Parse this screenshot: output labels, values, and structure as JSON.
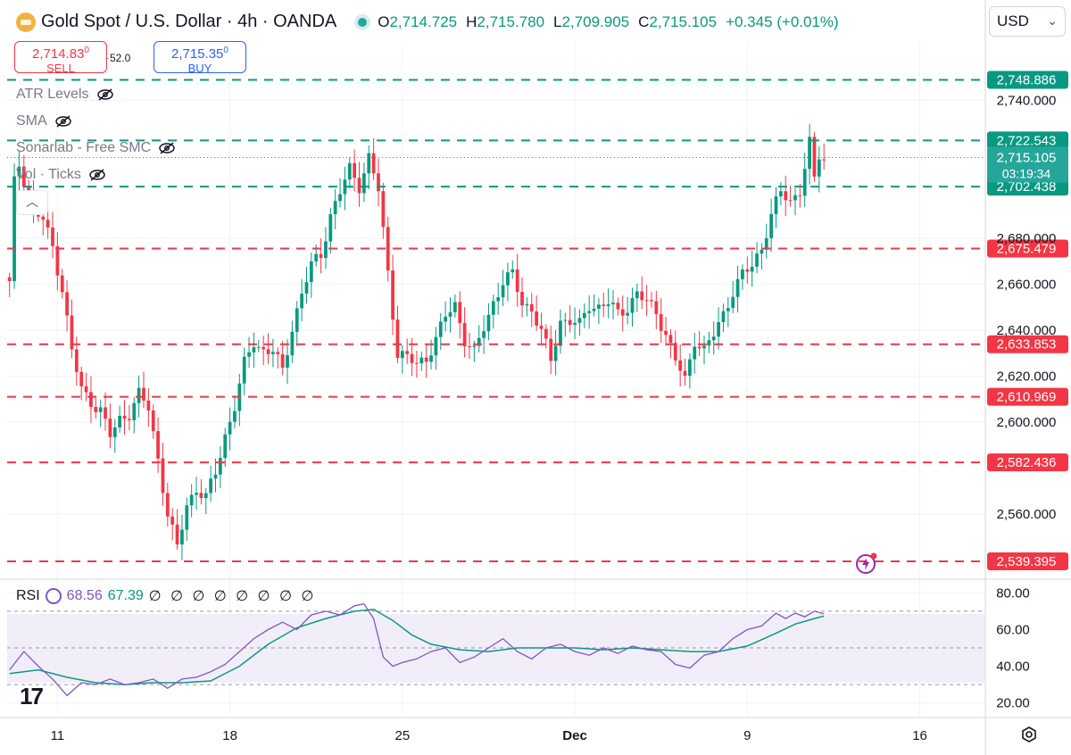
{
  "header": {
    "title": "Gold Spot / U.S. Dollar · 4h · OANDA",
    "ohlc": [
      {
        "key": "O",
        "value": "2,714.725"
      },
      {
        "key": "H",
        "value": "2,715.780"
      },
      {
        "key": "L",
        "value": "2,709.905"
      },
      {
        "key": "C",
        "value": "2,715.105"
      },
      {
        "key": "",
        "value": "+0.345 (+0.01%)"
      }
    ]
  },
  "trade": {
    "sell_price": "2,714.83",
    "sell_sup": "0",
    "sell_label": "SELL",
    "buy_price": "2,715.35",
    "buy_sup": "0",
    "buy_label": "BUY",
    "spread": "52.0"
  },
  "indicators": [
    "ATR Levels",
    "SMA",
    "Sonarlab - Free SMC",
    "Vol · Ticks"
  ],
  "currency": "USD",
  "rsi_legend": {
    "name": "RSI",
    "value1": "68.56",
    "value2": "67.39",
    "extra": "∅ ∅ ∅ ∅ ∅ ∅ ∅ ∅"
  },
  "logo_text": "17",
  "colors": {
    "up": "#089981",
    "down": "#f23645",
    "support": "#f23645",
    "resistance": "#089981",
    "rsi": "#7e57c2",
    "rsi_ma": "#089981"
  },
  "chart_data": {
    "type": "candlestick",
    "symbol": "XAUUSD",
    "timeframe": "4h",
    "ylim": [
      2532,
      2765
    ],
    "yticks": [
      2740,
      2680,
      2660,
      2640,
      2620,
      2600,
      2560
    ],
    "ytick_labels": [
      "2,740.000",
      "2,680.000",
      "2,660.000",
      "2,640.000",
      "2,620.000",
      "2,600.000",
      "2,560.000"
    ],
    "xticks": [
      {
        "bar": 10,
        "label": "11"
      },
      {
        "bar": 46,
        "label": "18"
      },
      {
        "bar": 82,
        "label": "25"
      },
      {
        "bar": 118,
        "label": "Dec"
      },
      {
        "bar": 154,
        "label": "9"
      },
      {
        "bar": 190,
        "label": "16"
      }
    ],
    "bars_total": 204,
    "current_price": 2715.105,
    "countdown": "03:19:34",
    "levels": [
      {
        "value": 2748.886,
        "label": "2,748.886",
        "kind": "resistance"
      },
      {
        "value": 2722.543,
        "label": "2,722.543",
        "kind": "resistance"
      },
      {
        "value": 2702.438,
        "label": "2,702.438",
        "kind": "resistance"
      },
      {
        "value": 2675.479,
        "label": "2,675.479",
        "kind": "support"
      },
      {
        "value": 2633.853,
        "label": "2,633.853",
        "kind": "support"
      },
      {
        "value": 2610.969,
        "label": "2,610.969",
        "kind": "support"
      },
      {
        "value": 2582.436,
        "label": "2,582.436",
        "kind": "support"
      },
      {
        "value": 2539.395,
        "label": "2,539.395",
        "kind": "support"
      }
    ],
    "close_path": [
      [
        0,
        2660
      ],
      [
        1,
        2704
      ],
      [
        2,
        2712
      ],
      [
        4,
        2699
      ],
      [
        5,
        2692
      ],
      [
        7,
        2688
      ],
      [
        9,
        2676
      ],
      [
        11,
        2658
      ],
      [
        13,
        2631
      ],
      [
        15,
        2614
      ],
      [
        17,
        2609
      ],
      [
        19,
        2605
      ],
      [
        21,
        2594
      ],
      [
        23,
        2601
      ],
      [
        25,
        2604
      ],
      [
        27,
        2612
      ],
      [
        29,
        2606
      ],
      [
        31,
        2584
      ],
      [
        33,
        2560
      ],
      [
        35,
        2545
      ],
      [
        37,
        2564
      ],
      [
        39,
        2571
      ],
      [
        41,
        2567
      ],
      [
        43,
        2578
      ],
      [
        45,
        2594
      ],
      [
        47,
        2607
      ],
      [
        49,
        2625
      ],
      [
        51,
        2635
      ],
      [
        53,
        2631
      ],
      [
        55,
        2631
      ],
      [
        57,
        2622
      ],
      [
        59,
        2641
      ],
      [
        61,
        2656
      ],
      [
        63,
        2668
      ],
      [
        65,
        2673
      ],
      [
        67,
        2690
      ],
      [
        69,
        2700
      ],
      [
        71,
        2710
      ],
      [
        73,
        2703
      ],
      [
        75,
        2715
      ],
      [
        77,
        2701
      ],
      [
        79,
        2665
      ],
      [
        81,
        2630
      ],
      [
        83,
        2628
      ],
      [
        85,
        2625
      ],
      [
        87,
        2628
      ],
      [
        89,
        2636
      ],
      [
        91,
        2646
      ],
      [
        93,
        2651
      ],
      [
        95,
        2636
      ],
      [
        97,
        2630
      ],
      [
        99,
        2641
      ],
      [
        101,
        2652
      ],
      [
        103,
        2661
      ],
      [
        105,
        2664
      ],
      [
        107,
        2652
      ],
      [
        109,
        2649
      ],
      [
        111,
        2639
      ],
      [
        113,
        2627
      ],
      [
        115,
        2644
      ],
      [
        117,
        2644
      ],
      [
        119,
        2642
      ],
      [
        121,
        2651
      ],
      [
        123,
        2650
      ],
      [
        125,
        2652
      ],
      [
        127,
        2647
      ],
      [
        129,
        2650
      ],
      [
        131,
        2656
      ],
      [
        133,
        2652
      ],
      [
        135,
        2648
      ],
      [
        137,
        2638
      ],
      [
        139,
        2627
      ],
      [
        141,
        2618
      ],
      [
        143,
        2636
      ],
      [
        145,
        2631
      ],
      [
        147,
        2638
      ],
      [
        149,
        2647
      ],
      [
        151,
        2657
      ],
      [
        153,
        2664
      ],
      [
        155,
        2668
      ],
      [
        157,
        2676
      ],
      [
        159,
        2690
      ],
      [
        161,
        2700
      ],
      [
        163,
        2696
      ],
      [
        165,
        2701
      ],
      [
        167,
        2721
      ],
      [
        168,
        2705
      ],
      [
        169,
        2716
      ],
      [
        170,
        2715
      ]
    ],
    "rsi": {
      "ylim": [
        13,
        87
      ],
      "yticks": [
        80,
        60,
        40,
        20
      ],
      "ytick_labels": [
        "80.00",
        "60.00",
        "40.00",
        "20.00"
      ],
      "bands": [
        70,
        50,
        30
      ],
      "value": 68.56,
      "ma_value": 67.39,
      "rsi_path": [
        [
          0,
          38
        ],
        [
          3,
          48
        ],
        [
          6,
          40
        ],
        [
          9,
          33
        ],
        [
          12,
          24
        ],
        [
          15,
          31
        ],
        [
          18,
          30
        ],
        [
          21,
          33
        ],
        [
          24,
          30
        ],
        [
          27,
          31
        ],
        [
          30,
          33
        ],
        [
          33,
          28
        ],
        [
          36,
          33
        ],
        [
          39,
          34
        ],
        [
          42,
          37
        ],
        [
          45,
          41
        ],
        [
          48,
          48
        ],
        [
          51,
          55
        ],
        [
          54,
          60
        ],
        [
          57,
          64
        ],
        [
          60,
          60
        ],
        [
          63,
          68
        ],
        [
          66,
          70
        ],
        [
          69,
          68
        ],
        [
          72,
          73
        ],
        [
          74,
          74
        ],
        [
          76,
          66
        ],
        [
          78,
          45
        ],
        [
          80,
          40
        ],
        [
          82,
          42
        ],
        [
          85,
          44
        ],
        [
          88,
          48
        ],
        [
          91,
          50
        ],
        [
          94,
          42
        ],
        [
          97,
          45
        ],
        [
          100,
          50
        ],
        [
          103,
          55
        ],
        [
          106,
          48
        ],
        [
          109,
          44
        ],
        [
          112,
          50
        ],
        [
          115,
          52
        ],
        [
          118,
          48
        ],
        [
          121,
          46
        ],
        [
          124,
          50
        ],
        [
          127,
          47
        ],
        [
          130,
          51
        ],
        [
          133,
          49
        ],
        [
          136,
          48
        ],
        [
          139,
          41
        ],
        [
          142,
          39
        ],
        [
          145,
          46
        ],
        [
          148,
          48
        ],
        [
          151,
          55
        ],
        [
          154,
          60
        ],
        [
          157,
          62
        ],
        [
          160,
          69
        ],
        [
          162,
          66
        ],
        [
          164,
          69
        ],
        [
          166,
          67
        ],
        [
          168,
          70
        ],
        [
          170,
          68.6
        ]
      ],
      "ma_path": [
        [
          0,
          36
        ],
        [
          6,
          38
        ],
        [
          12,
          34
        ],
        [
          18,
          31
        ],
        [
          24,
          30
        ],
        [
          30,
          31
        ],
        [
          36,
          31
        ],
        [
          42,
          32
        ],
        [
          48,
          40
        ],
        [
          54,
          52
        ],
        [
          60,
          61
        ],
        [
          66,
          66
        ],
        [
          72,
          70
        ],
        [
          76,
          71
        ],
        [
          80,
          65
        ],
        [
          84,
          57
        ],
        [
          88,
          52
        ],
        [
          94,
          49
        ],
        [
          100,
          48
        ],
        [
          106,
          50
        ],
        [
          112,
          50
        ],
        [
          118,
          50
        ],
        [
          124,
          49
        ],
        [
          130,
          50
        ],
        [
          136,
          49
        ],
        [
          142,
          48
        ],
        [
          148,
          48
        ],
        [
          154,
          51
        ],
        [
          160,
          58
        ],
        [
          164,
          63
        ],
        [
          168,
          66
        ],
        [
          170,
          67.4
        ]
      ]
    }
  }
}
